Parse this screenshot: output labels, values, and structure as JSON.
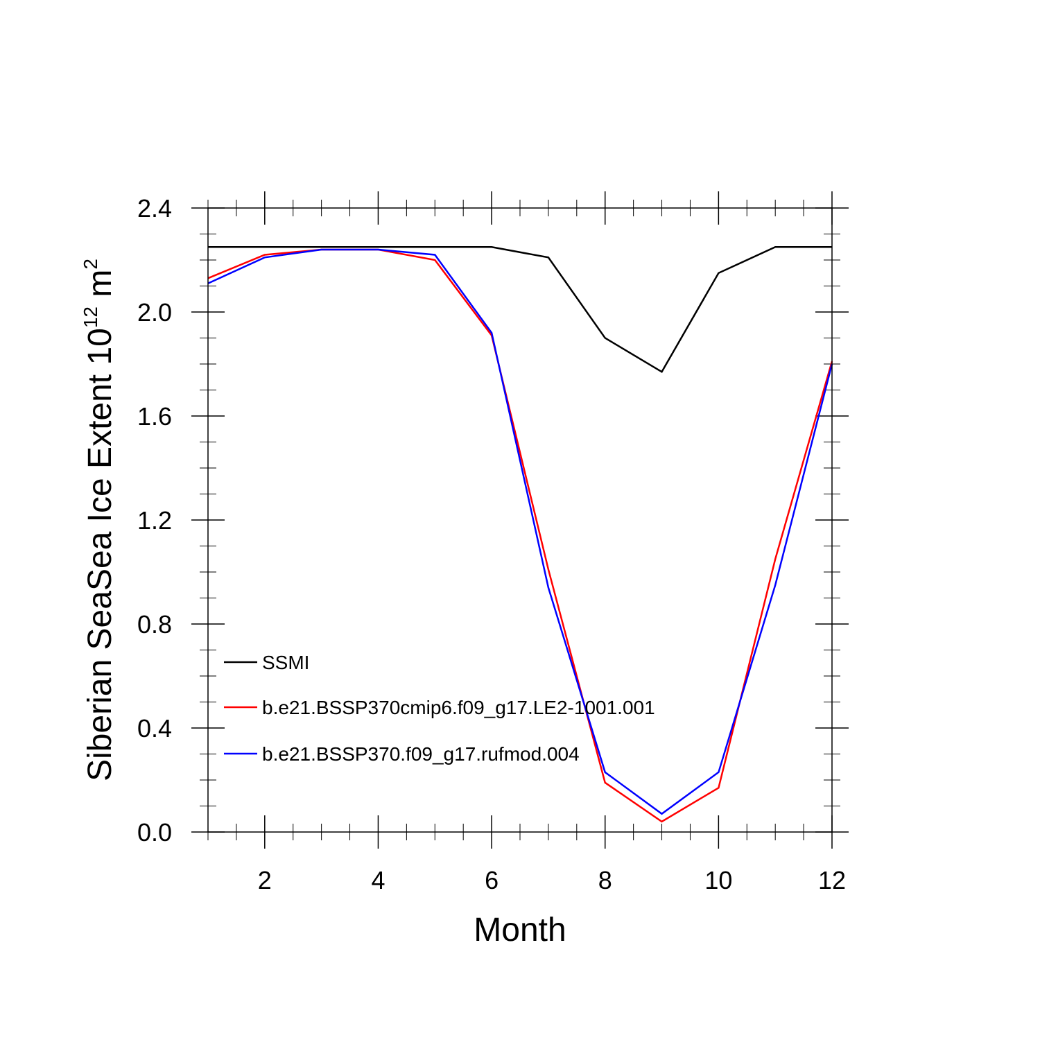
{
  "chart_data": {
    "type": "line",
    "title": "",
    "xlabel": "Month",
    "ylabel_parts": {
      "prefix": "Siberian SeaSea Ice Extent 10",
      "exp1": "12",
      "mid": " m",
      "exp2": "2"
    },
    "xlim": [
      1,
      12
    ],
    "ylim": [
      0.0,
      2.4
    ],
    "x_ticks": [
      2,
      4,
      6,
      8,
      10,
      12
    ],
    "x_tick_labels": [
      "2",
      "4",
      "6",
      "8",
      "10",
      "12"
    ],
    "x_minor_step": 0.5,
    "y_ticks": [
      0.0,
      0.4,
      0.8,
      1.2,
      1.6,
      2.0,
      2.4
    ],
    "y_tick_labels": [
      "0.0",
      "0.4",
      "0.8",
      "1.2",
      "1.6",
      "2.0",
      "2.4"
    ],
    "y_minor_step": 0.1,
    "legend_position": "lower-left",
    "x": [
      1,
      2,
      3,
      4,
      5,
      6,
      7,
      8,
      9,
      10,
      11,
      12
    ],
    "series": [
      {
        "name": "SSMI",
        "color": "#000000",
        "values": [
          2.25,
          2.25,
          2.25,
          2.25,
          2.25,
          2.25,
          2.21,
          1.9,
          1.77,
          2.15,
          2.25,
          2.25
        ]
      },
      {
        "name": "b.e21.BSSP370cmip6.f09_g17.LE2-1001.001",
        "color": "#ff0000",
        "values": [
          2.13,
          2.22,
          2.24,
          2.24,
          2.2,
          1.91,
          1.01,
          0.19,
          0.04,
          0.17,
          1.05,
          1.81
        ]
      },
      {
        "name": "b.e21.BSSP370.f09_g17.rufmod.004",
        "color": "#0000ff",
        "values": [
          2.11,
          2.21,
          2.24,
          2.24,
          2.22,
          1.92,
          0.94,
          0.23,
          0.07,
          0.23,
          0.95,
          1.8
        ]
      }
    ]
  }
}
